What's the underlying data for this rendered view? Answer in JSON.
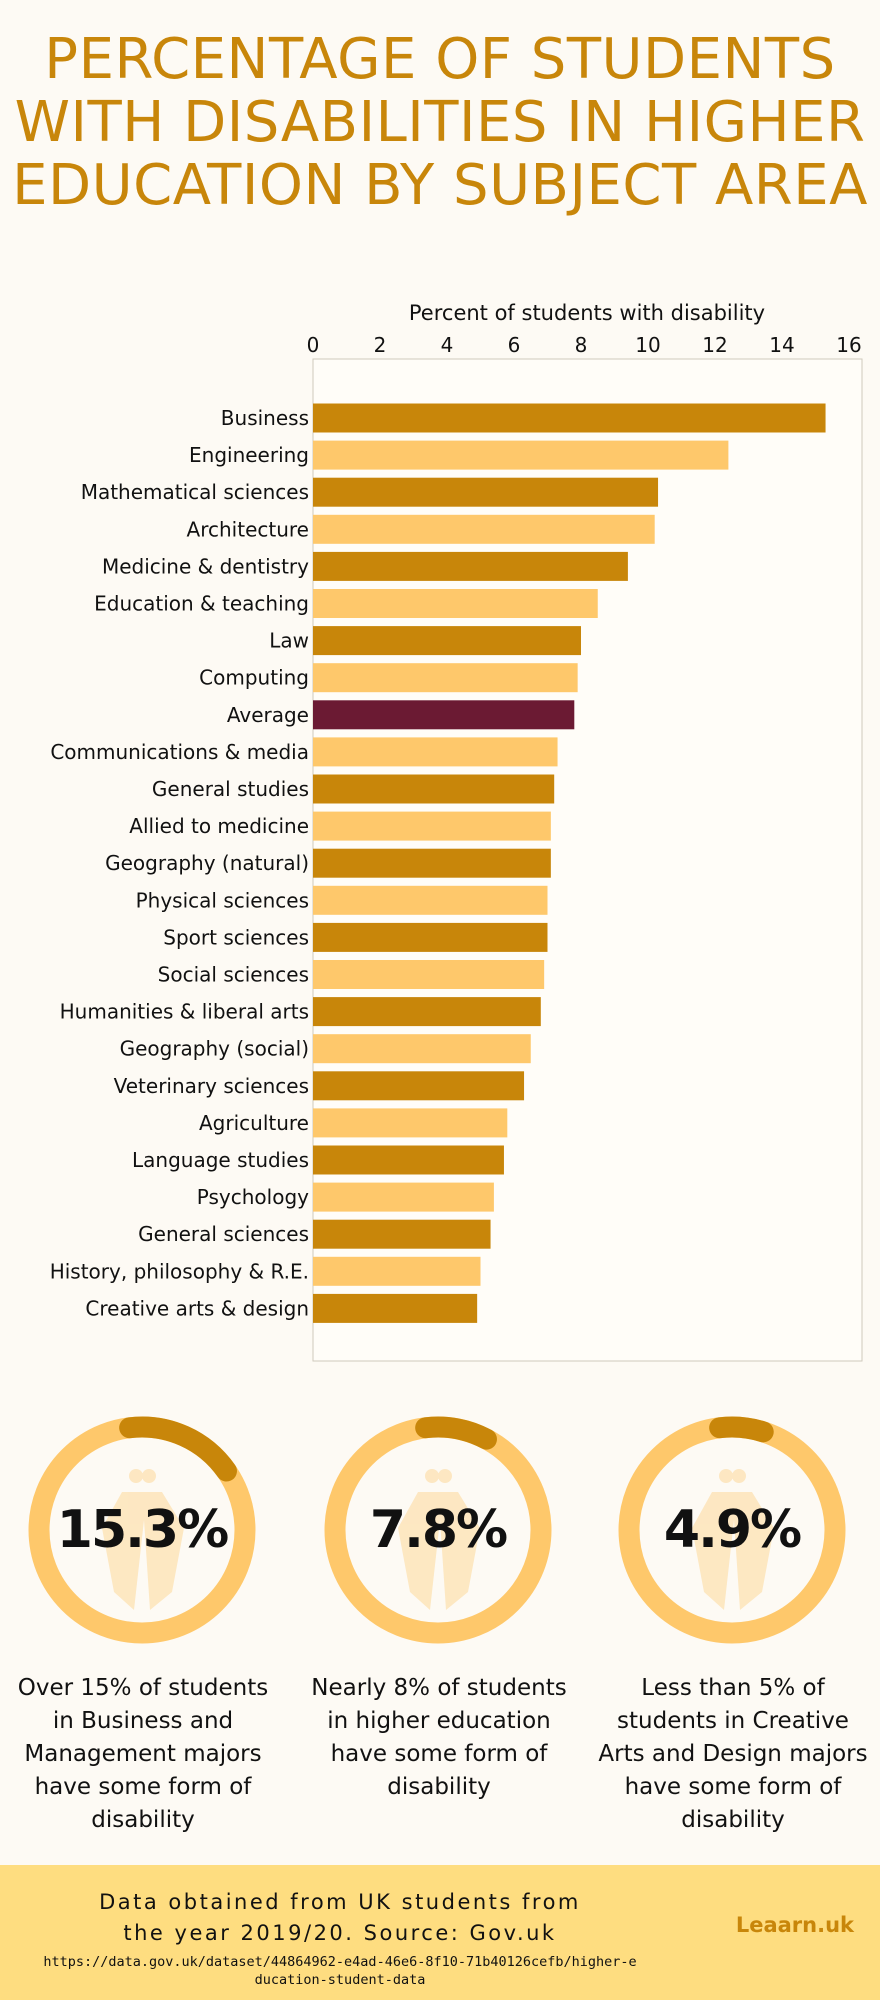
{
  "title": "PERCENTAGE OF STUDENTS WITH DISABILITIES IN HIGHER EDUCATION BY SUBJECT AREA",
  "colors": {
    "primary": "#c8860a",
    "secondary": "#fec86b",
    "highlight": "#6b1a33",
    "footer": "#fedd80"
  },
  "chart_data": {
    "type": "bar",
    "orientation": "horizontal",
    "xlabel": "Percent of students with disability",
    "xlim": [
      0,
      16
    ],
    "xticks": [
      0,
      2,
      4,
      6,
      8,
      10,
      12,
      14,
      16
    ],
    "grid": false,
    "categories": [
      "Business",
      "Engineering",
      "Mathematical sciences",
      "Architecture",
      "Medicine & dentistry",
      "Education & teaching",
      "Law",
      "Computing",
      "Average",
      "Communications & media",
      "General studies",
      "Allied to medicine",
      "Geography (natural)",
      "Physical sciences",
      "Sport sciences",
      "Social sciences",
      "Humanities & liberal arts",
      "Geography (social)",
      "Veterinary sciences",
      "Agriculture",
      "Language studies",
      "Psychology",
      "General sciences",
      "History, philosophy & R.E.",
      "Creative arts & design"
    ],
    "values": [
      15.3,
      12.4,
      10.3,
      10.2,
      9.4,
      8.5,
      8.0,
      7.9,
      7.8,
      7.3,
      7.2,
      7.1,
      7.1,
      7.0,
      7.0,
      6.9,
      6.8,
      6.5,
      6.3,
      5.8,
      5.7,
      5.4,
      5.3,
      5.0,
      4.9
    ]
  },
  "stats": [
    {
      "value": "15.3%",
      "fraction": 0.153,
      "caption": "Over 15% of students in Business and Management majors have some form of disability"
    },
    {
      "value": "7.8%",
      "fraction": 0.078,
      "caption": "Nearly 8% of students in higher education have some form of disability"
    },
    {
      "value": "4.9%",
      "fraction": 0.049,
      "caption": "Less than 5% of students in Creative Arts and Design majors have some form of disability"
    }
  ],
  "footer": {
    "source_line1": "Data obtained from UK students from",
    "source_line2": "the year 2019/20. Source: Gov.uk",
    "url": "https://data.gov.uk/dataset/44864962-e4ad-46e6-8f10-71b40126cefb/higher-education-student-data",
    "brand": "Leaarn.uk"
  }
}
